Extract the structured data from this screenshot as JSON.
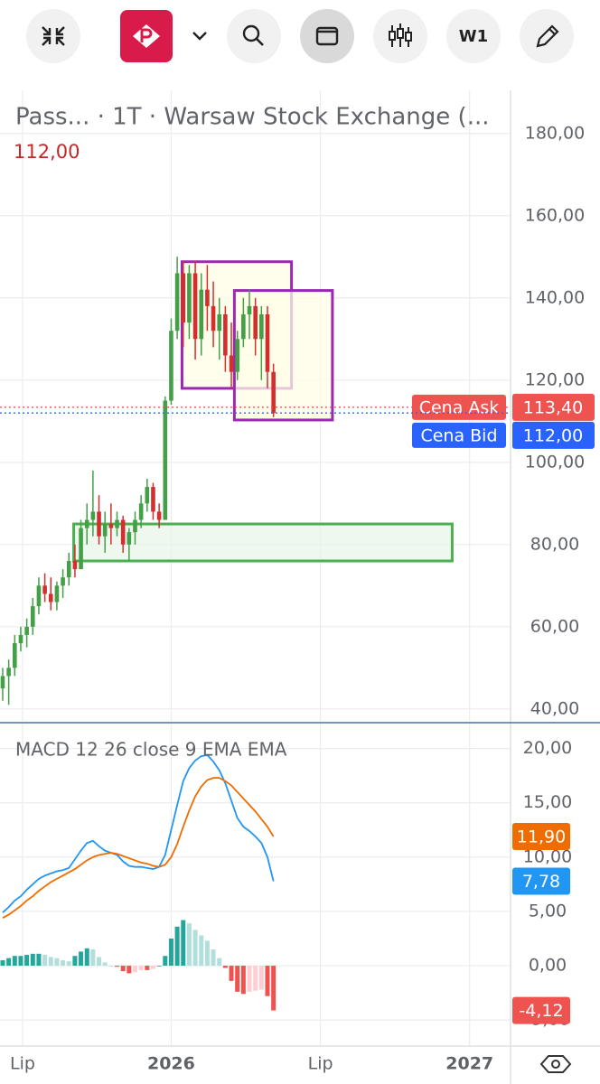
{
  "toolbar": {
    "timeframe": "W1"
  },
  "chart_data": [
    {
      "type": "candlestick",
      "title": "Pass...  · 1T · Warsaw Stock Exchange (...",
      "header_price": {
        "value": 112,
        "label": "112,00"
      },
      "categories": [
        null,
        null,
        null,
        null,
        null,
        null,
        null,
        null,
        null,
        null,
        null,
        null,
        null,
        null,
        null,
        null,
        null,
        null,
        null,
        null,
        null,
        null,
        null,
        null,
        null,
        null,
        null,
        null,
        null,
        null,
        null,
        null,
        null,
        null,
        null,
        null,
        null,
        null,
        null,
        null,
        null,
        null,
        null,
        null,
        null,
        null
      ],
      "open": [
        45,
        48,
        50,
        56,
        58,
        60,
        65,
        70,
        68,
        66,
        70,
        72,
        76,
        74,
        84,
        86,
        88,
        82,
        85,
        84,
        86,
        80,
        83,
        86,
        90,
        94,
        88,
        86,
        115,
        132,
        146,
        134,
        146,
        130,
        142,
        138,
        132,
        136,
        126,
        122,
        130,
        136,
        138,
        130,
        136,
        122
      ],
      "high": [
        50,
        52,
        58,
        60,
        62,
        67,
        72,
        73,
        72,
        71,
        74,
        78,
        80,
        86,
        90,
        98,
        92,
        88,
        90,
        88,
        87,
        84,
        88,
        92,
        96,
        95,
        90,
        116,
        135,
        150,
        149,
        148,
        149,
        146,
        148,
        144,
        140,
        138,
        134,
        132,
        140,
        142,
        140,
        138,
        138,
        124
      ],
      "low": [
        42,
        41,
        48,
        54,
        55,
        58,
        63,
        66,
        64,
        64,
        67,
        70,
        72,
        74,
        80,
        82,
        80,
        78,
        80,
        82,
        78,
        76,
        80,
        84,
        88,
        86,
        84,
        86,
        114,
        130,
        128,
        130,
        125,
        126,
        132,
        128,
        125,
        122,
        118,
        120,
        128,
        130,
        126,
        120,
        118,
        111
      ],
      "close": [
        48,
        50,
        56,
        58,
        60,
        65,
        70,
        68,
        66,
        70,
        72,
        76,
        74,
        84,
        86,
        88,
        82,
        85,
        84,
        86,
        80,
        83,
        86,
        90,
        94,
        88,
        86,
        115,
        132,
        146,
        134,
        146,
        130,
        142,
        138,
        132,
        136,
        126,
        122,
        130,
        136,
        138,
        130,
        136,
        122,
        112
      ],
      "up_color": "#43a047",
      "down_color": "#d32f2f",
      "xlim": [
        -0.45,
        84.4
      ],
      "ylim": [
        37.1,
        190.5
      ],
      "yticks": [
        {
          "value": 40,
          "label": "40,00"
        },
        {
          "value": 60,
          "label": "60,00"
        },
        {
          "value": 80,
          "label": "80,00"
        },
        {
          "value": 100,
          "label": "100,00"
        },
        {
          "value": 120,
          "label": "120,00"
        },
        {
          "value": 140,
          "label": "140,00"
        },
        {
          "value": 160,
          "label": "160,00"
        },
        {
          "value": 180,
          "label": "180,00"
        }
      ],
      "grid": true,
      "shapes": [
        {
          "x": [
            11.8,
            74.7
          ],
          "y": [
            76,
            85
          ],
          "color": "#4caf50",
          "fill": "#e8f5e9"
        },
        {
          "x": [
            29.8,
            48
          ],
          "y": [
            118,
            148.8
          ],
          "color": "#9c27b0",
          "fill": "#fffde7"
        },
        {
          "x": [
            38.5,
            54.8
          ],
          "y": [
            110.3,
            141.8
          ],
          "color": "#9c27b0",
          "fill": "#fffde7"
        }
      ],
      "price_lines": [
        {
          "name": "Cena Ask",
          "value": 113.4,
          "label": "113,40",
          "color": "#ef5350"
        },
        {
          "name": "Cena Bid",
          "value": 112,
          "label": "112,00",
          "color": "#2962ff"
        }
      ]
    },
    {
      "type": "macd",
      "title": "MACD 12 26 close 9 EMA EMA",
      "xlim": [
        -0.45,
        84.4
      ],
      "xticks": [
        {
          "value": 3.3,
          "label": "Lip"
        },
        {
          "value": 28,
          "label": "2026"
        },
        {
          "value": 52.8,
          "label": "Lip"
        },
        {
          "value": 77.6,
          "label": "2027"
        }
      ],
      "ylim": [
        -7.4,
        22.3
      ],
      "yticks": [
        {
          "value": 20,
          "label": "20,00"
        },
        {
          "value": 15,
          "label": "15,00"
        },
        {
          "value": 10,
          "label": "10,00"
        },
        {
          "value": 5,
          "label": "5,00"
        },
        {
          "value": 0,
          "label": "0,00"
        },
        {
          "value": -5,
          "label": "-5,00"
        }
      ],
      "grid": true,
      "histogram": {
        "values": [
          0.5,
          0.7,
          0.9,
          0.9,
          1.0,
          1.1,
          1.1,
          1.0,
          0.8,
          0.7,
          0.5,
          0.4,
          0.9,
          1.3,
          1.6,
          1.5,
          0.8,
          0.3,
          0,
          -0.1,
          -0.5,
          -0.7,
          -0.6,
          -0.4,
          -0.4,
          -0.3,
          0,
          0.9,
          2.5,
          3.6,
          4.2,
          3.9,
          3.3,
          2.8,
          2.3,
          1.5,
          0.7,
          -0.2,
          -1.4,
          -2.4,
          -2.6,
          -2.4,
          -2.3,
          -2.2,
          -2.8,
          -4.12
        ],
        "palette": [
          "#26a69a",
          "#b2dfdb",
          "#ffcdd2",
          "#ef5350"
        ],
        "last_label": "-4,12"
      },
      "series": [
        {
          "color": "#2196f3",
          "last_label": "7,78",
          "values": [
            4.9,
            5.4,
            6.0,
            6.4,
            7.0,
            7.5,
            8.0,
            8.3,
            8.5,
            8.7,
            8.8,
            9.0,
            9.8,
            10.6,
            11.3,
            11.5,
            11.0,
            10.6,
            10.4,
            10.2,
            9.6,
            9.2,
            9.1,
            9.1,
            9.0,
            8.9,
            9.1,
            10.2,
            12.5,
            14.8,
            17.0,
            18.2,
            18.9,
            19.3,
            19.4,
            18.8,
            18.0,
            16.8,
            15.2,
            13.6,
            12.8,
            12.4,
            11.9,
            11.3,
            10.0,
            7.78
          ]
        },
        {
          "color": "#ef6c00",
          "last_label": "11,90",
          "values": [
            4.4,
            4.7,
            5.1,
            5.5,
            6.0,
            6.4,
            6.9,
            7.3,
            7.7,
            8.0,
            8.3,
            8.6,
            8.9,
            9.3,
            9.7,
            10.0,
            10.2,
            10.3,
            10.4,
            10.3,
            10.1,
            9.9,
            9.7,
            9.5,
            9.4,
            9.2,
            9.1,
            9.3,
            10.0,
            11.2,
            12.8,
            14.3,
            15.6,
            16.5,
            17.1,
            17.3,
            17.3,
            17.0,
            16.6,
            16.0,
            15.4,
            14.8,
            14.2,
            13.5,
            12.8,
            11.9
          ]
        }
      ]
    }
  ]
}
